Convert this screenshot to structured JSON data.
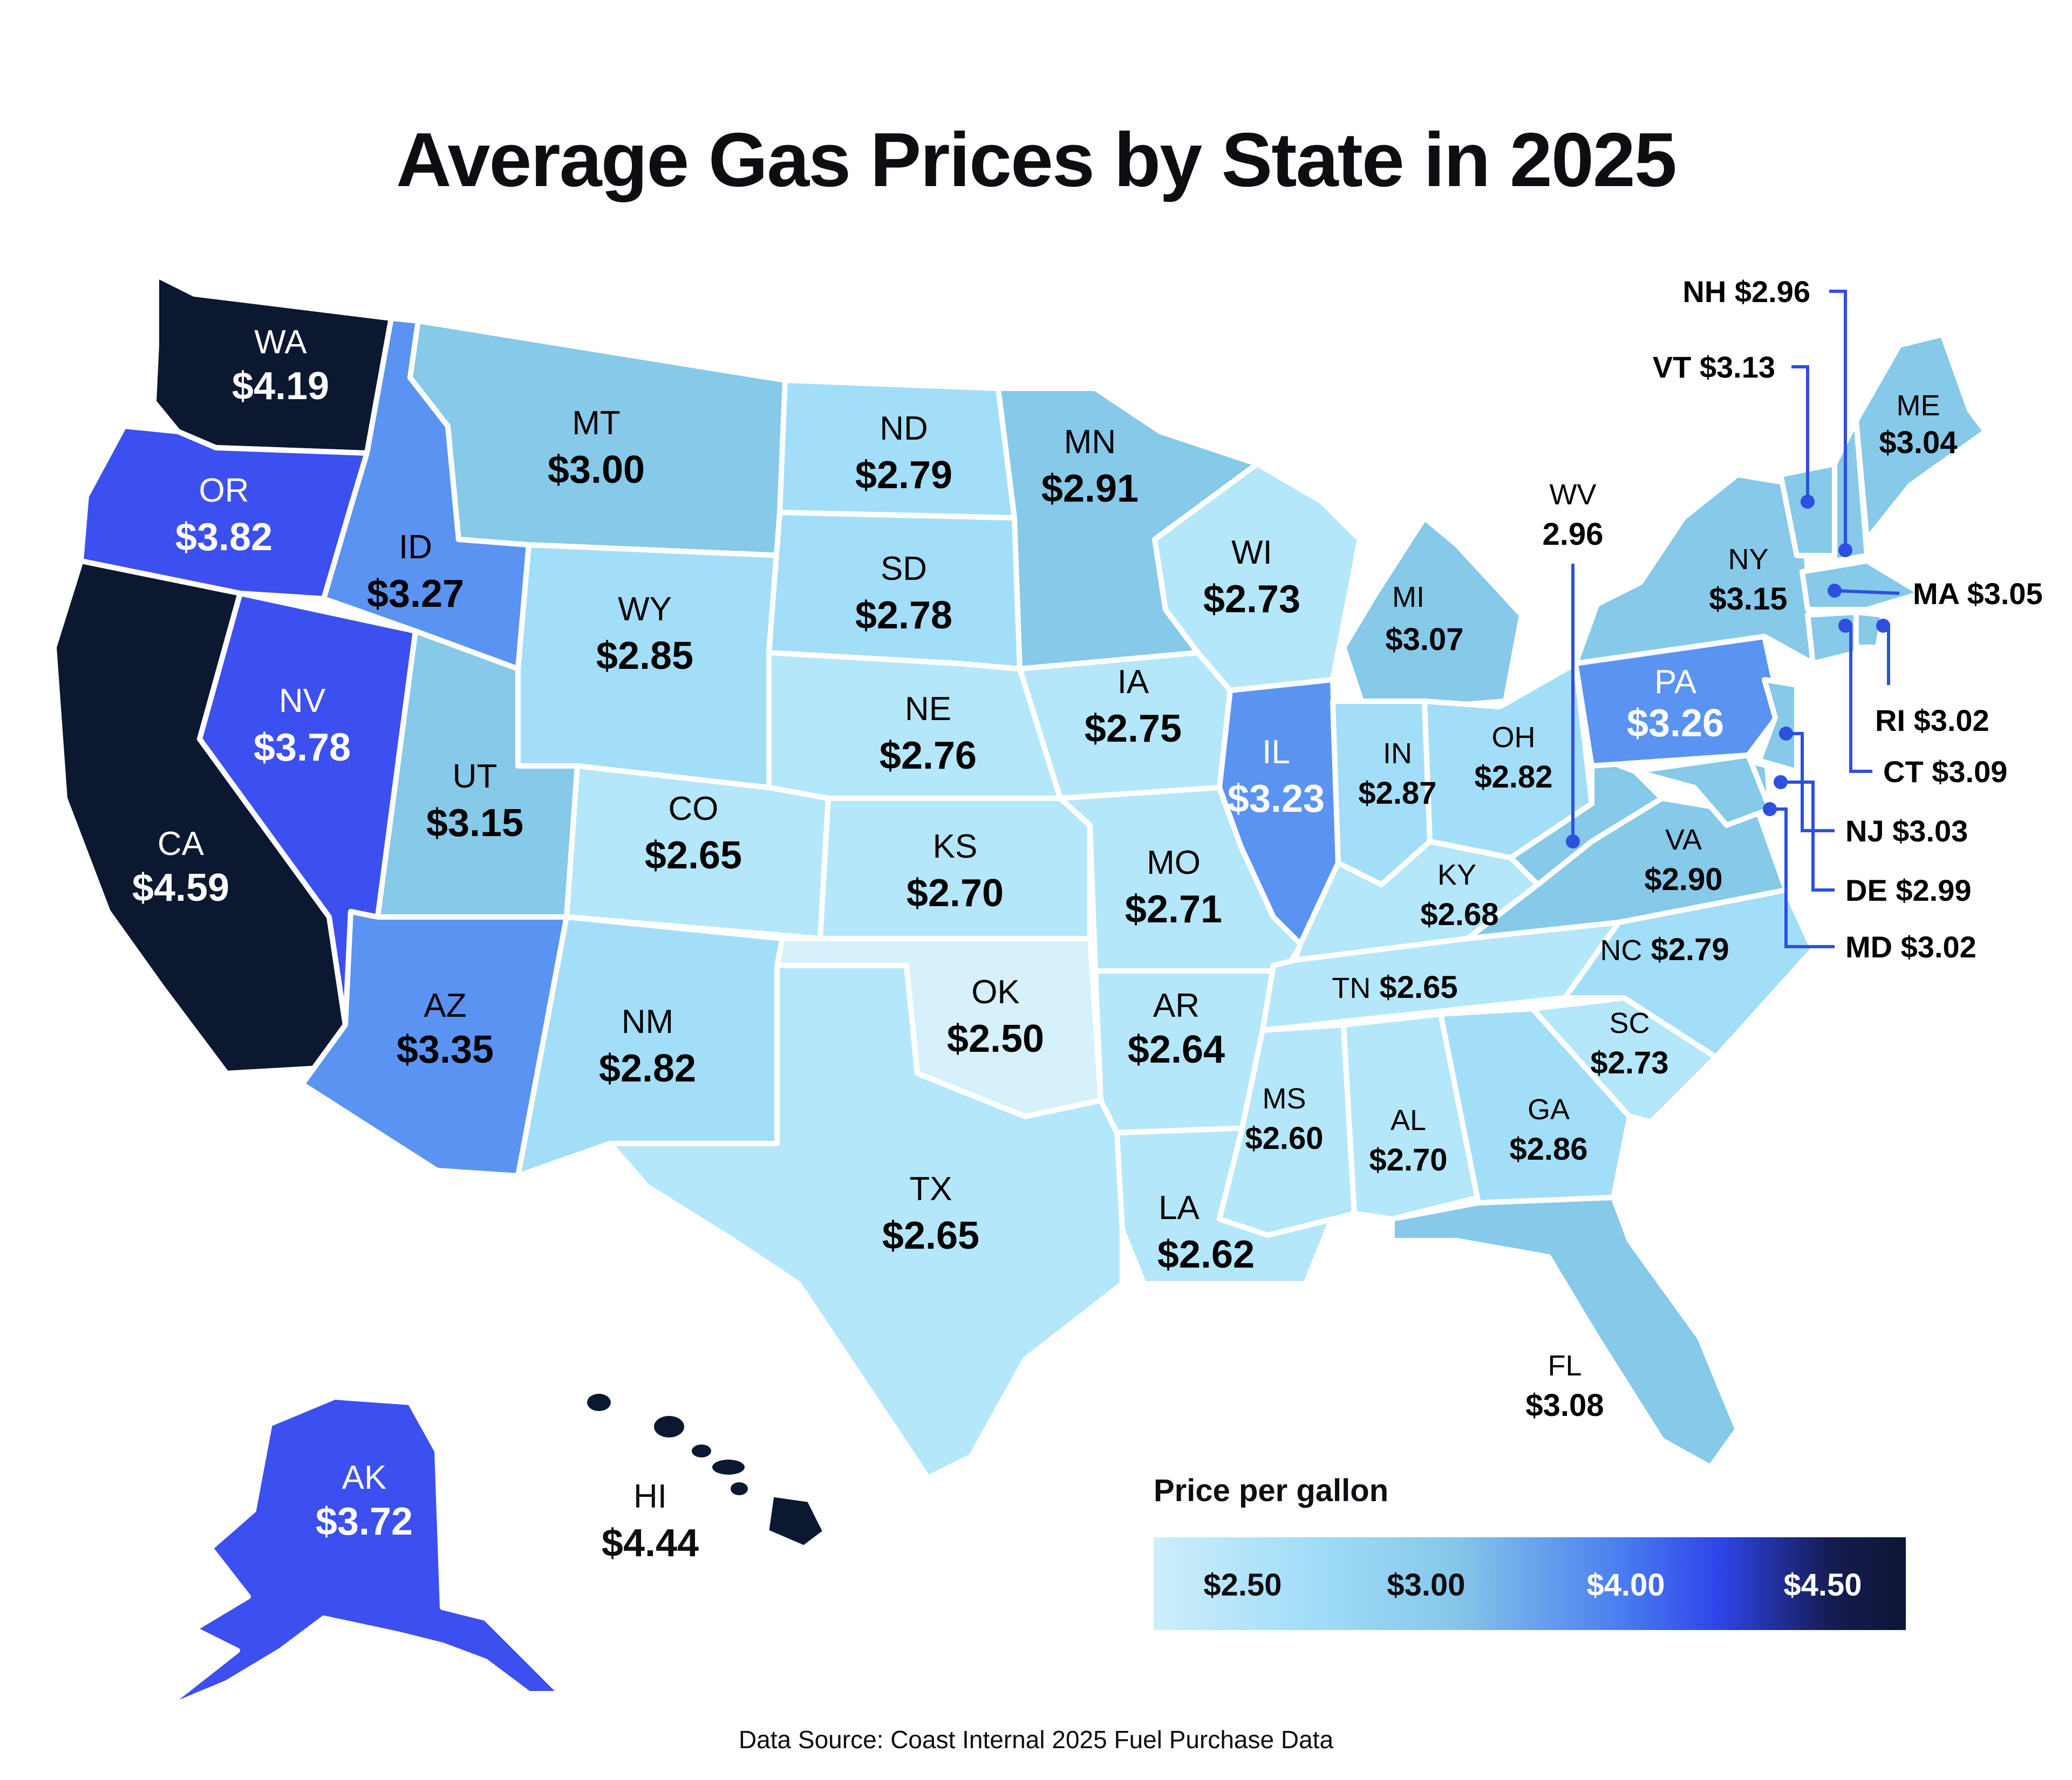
{
  "title": "Average Gas Prices by State in 2025",
  "source": "Data Source: Coast Internal 2025 Fuel Purchase Data",
  "legend": {
    "title": "Price per gallon",
    "ticks": [
      "$2.50",
      "$3.00",
      "$4.00",
      "$4.50"
    ]
  },
  "colors": {
    "tier_lightest": "#d6f1fc",
    "tier_light": "#b5e7fb",
    "tier_mid_light": "#a3def9",
    "tier_mid": "#86c9e9",
    "tier_blue": "#5b93f3",
    "tier_bright": "#3c4ff0",
    "tier_darkest": "#0c1730",
    "label_dark": "#0d0d12",
    "label_light": "#ffffff",
    "leader_line": "#2f4fdf"
  },
  "chart_data": {
    "type": "choropleth",
    "title": "Average Gas Prices by State in 2025",
    "unit": "Price per gallon",
    "states": {
      "WA": {
        "name": "WA",
        "price": "$4.19",
        "value": 4.19
      },
      "OR": {
        "name": "OR",
        "price": "$3.82",
        "value": 3.82
      },
      "CA": {
        "name": "CA",
        "price": "$4.59",
        "value": 4.59
      },
      "NV": {
        "name": "NV",
        "price": "$3.78",
        "value": 3.78
      },
      "ID": {
        "name": "ID",
        "price": "$3.27",
        "value": 3.27
      },
      "MT": {
        "name": "MT",
        "price": "$3.00",
        "value": 3.0
      },
      "WY": {
        "name": "WY",
        "price": "$2.85",
        "value": 2.85
      },
      "UT": {
        "name": "UT",
        "price": "$3.15",
        "value": 3.15
      },
      "AZ": {
        "name": "AZ",
        "price": "$3.35",
        "value": 3.35
      },
      "CO": {
        "name": "CO",
        "price": "$2.65",
        "value": 2.65
      },
      "NM": {
        "name": "NM",
        "price": "$2.82",
        "value": 2.82
      },
      "ND": {
        "name": "ND",
        "price": "$2.79",
        "value": 2.79
      },
      "SD": {
        "name": "SD",
        "price": "$2.78",
        "value": 2.78
      },
      "NE": {
        "name": "NE",
        "price": "$2.76",
        "value": 2.76
      },
      "KS": {
        "name": "KS",
        "price": "$2.70",
        "value": 2.7
      },
      "OK": {
        "name": "OK",
        "price": "$2.50",
        "value": 2.5
      },
      "TX": {
        "name": "TX",
        "price": "$2.65",
        "value": 2.65
      },
      "MN": {
        "name": "MN",
        "price": "$2.91",
        "value": 2.91
      },
      "IA": {
        "name": "IA",
        "price": "$2.75",
        "value": 2.75
      },
      "MO": {
        "name": "MO",
        "price": "$2.71",
        "value": 2.71
      },
      "AR": {
        "name": "AR",
        "price": "$2.64",
        "value": 2.64
      },
      "LA": {
        "name": "LA",
        "price": "$2.62",
        "value": 2.62
      },
      "WI": {
        "name": "WI",
        "price": "$2.73",
        "value": 2.73
      },
      "IL": {
        "name": "IL",
        "price": "$3.23",
        "value": 3.23
      },
      "MI": {
        "name": "MI",
        "price": "$3.07",
        "value": 3.07
      },
      "IN": {
        "name": "IN",
        "price": "$2.87",
        "value": 2.87
      },
      "OH": {
        "name": "OH",
        "price": "$2.82",
        "value": 2.82
      },
      "KY": {
        "name": "KY",
        "price": "$2.68",
        "value": 2.68
      },
      "TN": {
        "name": "TN",
        "price": "$2.65",
        "value": 2.65
      },
      "MS": {
        "name": "MS",
        "price": "$2.60",
        "value": 2.6
      },
      "AL": {
        "name": "AL",
        "price": "$2.70",
        "value": 2.7
      },
      "GA": {
        "name": "GA",
        "price": "$2.86",
        "value": 2.86
      },
      "FL": {
        "name": "FL",
        "price": "$3.08",
        "value": 3.08
      },
      "SC": {
        "name": "SC",
        "price": "$2.73",
        "value": 2.73
      },
      "NC": {
        "name": "NC",
        "price": "$2.79",
        "value": 2.79
      },
      "VA": {
        "name": "VA",
        "price": "$2.90",
        "value": 2.9
      },
      "WV": {
        "name": "WV",
        "price": "2.96",
        "value": 2.96
      },
      "PA": {
        "name": "PA",
        "price": "$3.26",
        "value": 3.26
      },
      "NY": {
        "name": "NY",
        "price": "$3.15",
        "value": 3.15
      },
      "ME": {
        "name": "ME",
        "price": "$3.04",
        "value": 3.04
      },
      "NH": {
        "name": "NH",
        "price": "$2.96",
        "value": 2.96
      },
      "VT": {
        "name": "VT",
        "price": "$3.13",
        "value": 3.13
      },
      "MA": {
        "name": "MA",
        "price": "$3.05",
        "value": 3.05
      },
      "RI": {
        "name": "RI",
        "price": "$3.02",
        "value": 3.02
      },
      "CT": {
        "name": "CT",
        "price": "$3.09",
        "value": 3.09
      },
      "NJ": {
        "name": "NJ",
        "price": "$3.03",
        "value": 3.03
      },
      "DE": {
        "name": "DE",
        "price": "$2.99",
        "value": 2.99
      },
      "MD": {
        "name": "MD",
        "price": "$3.02",
        "value": 3.02
      },
      "AK": {
        "name": "AK",
        "price": "$3.72",
        "value": 3.72
      },
      "HI": {
        "name": "HI",
        "price": "$4.44",
        "value": 4.44
      }
    },
    "legend_scale": [
      "$2.50",
      "$3.00",
      "$4.00",
      "$4.50"
    ]
  }
}
